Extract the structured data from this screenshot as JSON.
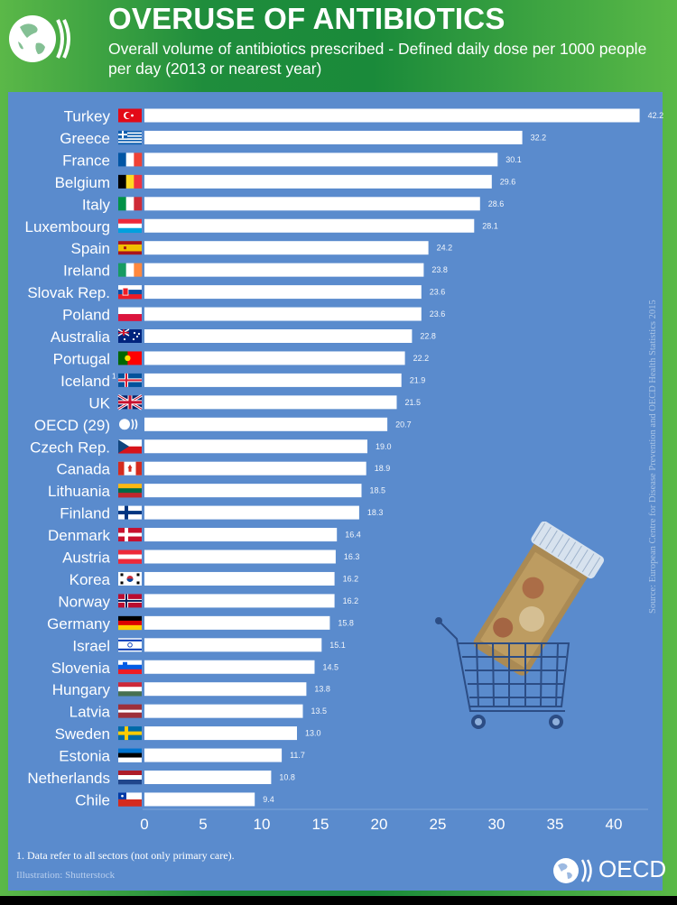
{
  "header": {
    "title": "OVERUSE OF ANTIBIOTICS",
    "subtitle": "Overall volume of antibiotics prescribed - Defined daily dose per 1000 people per day (2013 or nearest year)"
  },
  "colors": {
    "panel": "#5a8bcd",
    "bar": "#ffffff",
    "frame_green": "#1f8d3c",
    "frame_light_green": "#5bb848",
    "source_text": "#a9c4e6"
  },
  "chart_data": {
    "type": "bar",
    "orientation": "horizontal",
    "title": "OVERUSE OF ANTIBIOTICS",
    "subtitle": "Overall volume of antibiotics prescribed - Defined daily dose per 1000 people per day (2013 or nearest year)",
    "xlabel": "",
    "ylabel": "",
    "xlim": [
      0,
      43
    ],
    "xticks": [
      0,
      5,
      10,
      15,
      20,
      25,
      30,
      35,
      40
    ],
    "grid": false,
    "legend": "none",
    "categories": [
      "Turkey",
      "Greece",
      "France",
      "Belgium",
      "Italy",
      "Luxembourg",
      "Spain",
      "Ireland",
      "Slovak Rep.",
      "Poland",
      "Australia",
      "Portugal",
      "Iceland",
      "UK",
      "OECD (29)",
      "Czech Rep.",
      "Canada",
      "Lithuania",
      "Finland",
      "Denmark",
      "Austria",
      "Korea",
      "Norway",
      "Germany",
      "Israel",
      "Slovenia",
      "Hungary",
      "Latvia",
      "Sweden",
      "Estonia",
      "Netherlands",
      "Chile"
    ],
    "category_footnote_marks": [
      "",
      "",
      "",
      "",
      "",
      "",
      "",
      "",
      "",
      "",
      "",
      "",
      "1",
      "",
      "",
      "",
      "",
      "",
      "",
      "",
      "",
      "",
      "",
      "",
      "",
      "",
      "",
      "",
      "",
      "",
      "",
      ""
    ],
    "values": [
      42.2,
      32.2,
      30.1,
      29.6,
      28.6,
      28.1,
      24.2,
      23.8,
      23.6,
      23.6,
      22.8,
      22.2,
      21.9,
      21.5,
      20.7,
      19.0,
      18.9,
      18.5,
      18.3,
      16.4,
      16.3,
      16.2,
      16.2,
      15.8,
      15.1,
      14.5,
      13.8,
      13.5,
      13.0,
      11.7,
      10.8,
      9.4
    ],
    "value_labels": [
      "42.2",
      "32.2",
      "30.1",
      "29.6",
      "28.6",
      "28.1",
      "24.2",
      "23.8",
      "23.6",
      "23.6",
      "22.8",
      "22.2",
      "21.9",
      "21.5",
      "20.7",
      "19.0",
      "18.9",
      "18.5",
      "18.3",
      "16.4",
      "16.3",
      "16.2",
      "16.2",
      "15.8",
      "15.1",
      "14.5",
      "13.8",
      "13.5",
      "13.0",
      "11.7",
      "10.8",
      "9.4"
    ],
    "flags": [
      "turkey-flag",
      "greece-flag",
      "france-flag",
      "belgium-flag",
      "italy-flag",
      "luxembourg-flag",
      "spain-flag",
      "ireland-flag",
      "slovakia-flag",
      "poland-flag",
      "australia-flag",
      "portugal-flag",
      "iceland-flag",
      "uk-flag",
      "oecd-logo",
      "czech-flag",
      "canada-flag",
      "lithuania-flag",
      "finland-flag",
      "denmark-flag",
      "austria-flag",
      "korea-flag",
      "norway-flag",
      "germany-flag",
      "israel-flag",
      "slovenia-flag",
      "hungary-flag",
      "latvia-flag",
      "sweden-flag",
      "estonia-flag",
      "netherlands-flag",
      "chile-flag"
    ]
  },
  "source": "Source: European Centre for Disease Prevention and OECD Health Statistics 2015",
  "footer": {
    "footnote": "1. Data refer to all sectors (not only primary care).",
    "credit": "Illustration: Shutterstock",
    "brand": "OECD"
  },
  "illustration": {
    "icon": "pill-bottle-in-shopping-cart-icon"
  }
}
